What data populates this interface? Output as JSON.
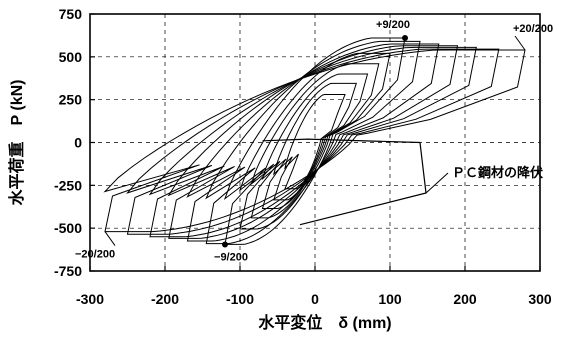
{
  "chart_data": {
    "type": "line",
    "title": "",
    "xlabel": "水平変位　δ (mm)",
    "ylabel": "水平荷重　P (kN)",
    "xlim": [
      -300,
      300
    ],
    "ylim": [
      -750,
      750
    ],
    "x_ticks": [
      -300,
      -200,
      -100,
      0,
      100,
      200,
      300
    ],
    "y_ticks": [
      -750,
      -500,
      -250,
      0,
      250,
      500,
      750
    ],
    "grid": "dashed",
    "peak_points": [
      {
        "x": 40,
        "y": 280
      },
      {
        "x": 55,
        "y": 345
      },
      {
        "x": 70,
        "y": 400
      },
      {
        "x": 85,
        "y": 460
      },
      {
        "x": 100,
        "y": 520
      },
      {
        "x": 120,
        "y": 610
      },
      {
        "x": 140,
        "y": 590
      },
      {
        "x": 165,
        "y": 575
      },
      {
        "x": 190,
        "y": 565
      },
      {
        "x": 215,
        "y": 555
      },
      {
        "x": 245,
        "y": 545
      },
      {
        "x": 280,
        "y": 540
      }
    ],
    "trough_points": [
      {
        "x": -40,
        "y": -270
      },
      {
        "x": -55,
        "y": -335
      },
      {
        "x": -70,
        "y": -385
      },
      {
        "x": -85,
        "y": -440
      },
      {
        "x": -100,
        "y": -505
      },
      {
        "x": -120,
        "y": -595
      },
      {
        "x": -145,
        "y": -590
      },
      {
        "x": -170,
        "y": -575
      },
      {
        "x": -195,
        "y": -560
      },
      {
        "x": -220,
        "y": -550
      },
      {
        "x": -250,
        "y": -535
      },
      {
        "x": -280,
        "y": -520
      }
    ],
    "yield_envelope": {
      "name": "PC鋼材の降伏",
      "points": [
        {
          "x": -70,
          "y": 10
        },
        {
          "x": -10,
          "y": 20
        },
        {
          "x": 140,
          "y": 0
        },
        {
          "x": 148,
          "y": -295
        },
        {
          "x": -20,
          "y": -480
        }
      ]
    },
    "annotations": [
      {
        "text": "+9/200",
        "x": 120,
        "y": 610,
        "type": "marker"
      },
      {
        "text": "+20/200",
        "x": 280,
        "y": 540,
        "type": "pointer"
      },
      {
        "text": "−20/200",
        "x": -280,
        "y": -520,
        "type": "pointer"
      },
      {
        "text": "−9/200",
        "x": -120,
        "y": -595,
        "type": "marker"
      },
      {
        "text": "ＰＣ鋼材の降伏",
        "x": 148,
        "y": -295,
        "type": "leader"
      }
    ]
  }
}
